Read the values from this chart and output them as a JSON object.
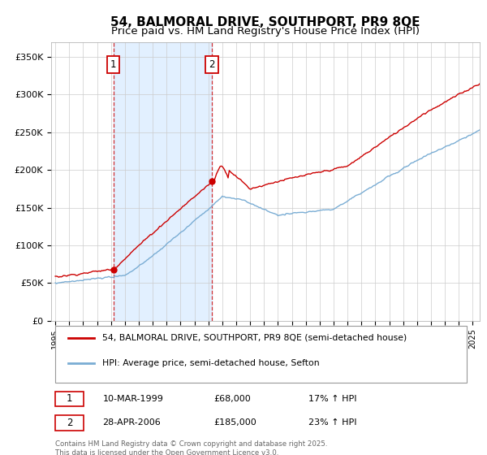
{
  "title1": "54, BALMORAL DRIVE, SOUTHPORT, PR9 8QE",
  "title2": "Price paid vs. HM Land Registry's House Price Index (HPI)",
  "ylabel_ticks": [
    "£0",
    "£50K",
    "£100K",
    "£150K",
    "£200K",
    "£250K",
    "£300K",
    "£350K"
  ],
  "ytick_values": [
    0,
    50000,
    100000,
    150000,
    200000,
    250000,
    300000,
    350000
  ],
  "ylim": [
    0,
    370000
  ],
  "red_line_color": "#cc0000",
  "blue_line_color": "#7aadd4",
  "marker_box_color": "#cc0000",
  "shaded_region_color": "#ddeeff",
  "legend_label_red": "54, BALMORAL DRIVE, SOUTHPORT, PR9 8QE (semi-detached house)",
  "legend_label_blue": "HPI: Average price, semi-detached house, Sefton",
  "transaction1_label": "1",
  "transaction1_date": "10-MAR-1999",
  "transaction1_price": "£68,000",
  "transaction1_pct": "17% ↑ HPI",
  "transaction2_label": "2",
  "transaction2_date": "28-APR-2006",
  "transaction2_price": "£185,000",
  "transaction2_pct": "23% ↑ HPI",
  "footer": "Contains HM Land Registry data © Crown copyright and database right 2025.\nThis data is licensed under the Open Government Licence v3.0.",
  "title_fontsize": 11,
  "subtitle_fontsize": 9.5,
  "tick_fontsize": 8,
  "background_color": "#ffffff",
  "plot_bg_color": "#ffffff",
  "grid_color": "#cccccc"
}
